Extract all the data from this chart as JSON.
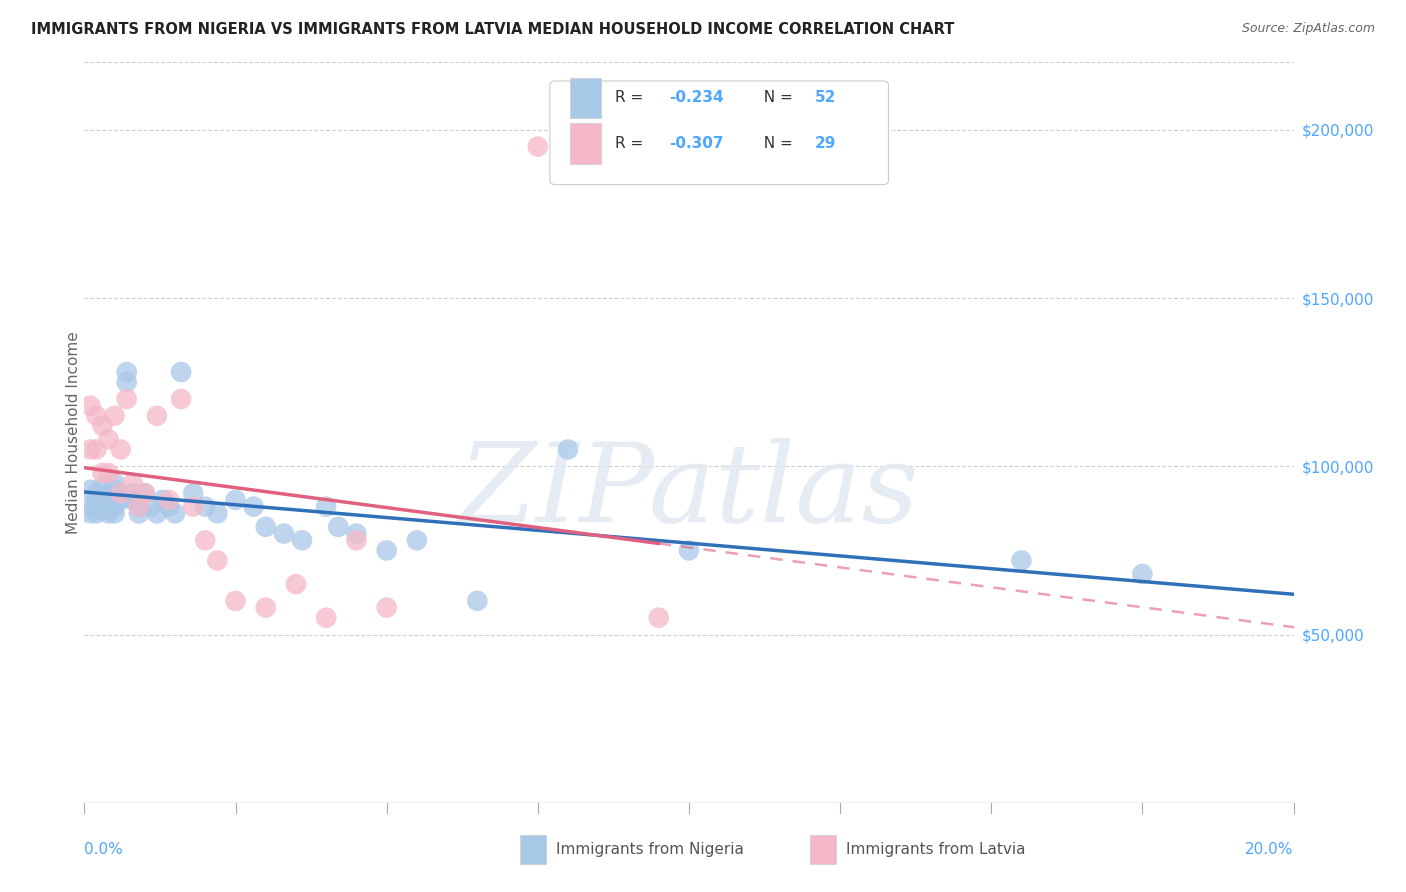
{
  "title": "IMMIGRANTS FROM NIGERIA VS IMMIGRANTS FROM LATVIA MEDIAN HOUSEHOLD INCOME CORRELATION CHART",
  "source": "Source: ZipAtlas.com",
  "ylabel": "Median Household Income",
  "nigeria_R": -0.234,
  "nigeria_N": 52,
  "latvia_R": -0.307,
  "latvia_N": 29,
  "nigeria_color": "#a8c8e8",
  "latvia_color": "#f4b8c8",
  "nigeria_line_color": "#3070b8",
  "latvia_line_color": "#e06080",
  "background_color": "#ffffff",
  "grid_color": "#d0d0d0",
  "ytick_color": "#4da6ff",
  "xtick_color": "#4da6ff",
  "legend_text_color": "#333333",
  "legend_value_color": "#4da6ff",
  "xlim": [
    0.0,
    0.2
  ],
  "ylim": [
    0,
    220000
  ],
  "nigeria_x": [
    0.001,
    0.001,
    0.001,
    0.002,
    0.002,
    0.002,
    0.002,
    0.003,
    0.003,
    0.003,
    0.003,
    0.004,
    0.004,
    0.004,
    0.004,
    0.005,
    0.005,
    0.005,
    0.005,
    0.006,
    0.006,
    0.007,
    0.007,
    0.008,
    0.008,
    0.009,
    0.009,
    0.01,
    0.011,
    0.012,
    0.013,
    0.014,
    0.015,
    0.016,
    0.018,
    0.02,
    0.022,
    0.025,
    0.028,
    0.03,
    0.033,
    0.036,
    0.04,
    0.042,
    0.045,
    0.05,
    0.055,
    0.065,
    0.08,
    0.1,
    0.155,
    0.175
  ],
  "nigeria_y": [
    88000,
    93000,
    86000,
    92000,
    90000,
    88000,
    86000,
    94000,
    90000,
    88000,
    87000,
    92000,
    88000,
    86000,
    90000,
    95000,
    93000,
    88000,
    86000,
    92000,
    90000,
    125000,
    128000,
    92000,
    90000,
    88000,
    86000,
    92000,
    88000,
    86000,
    90000,
    88000,
    86000,
    128000,
    92000,
    88000,
    86000,
    90000,
    88000,
    82000,
    80000,
    78000,
    88000,
    82000,
    80000,
    75000,
    78000,
    60000,
    105000,
    75000,
    72000,
    68000
  ],
  "latvia_x": [
    0.001,
    0.001,
    0.002,
    0.002,
    0.003,
    0.003,
    0.004,
    0.004,
    0.005,
    0.006,
    0.006,
    0.007,
    0.008,
    0.009,
    0.01,
    0.012,
    0.014,
    0.016,
    0.018,
    0.02,
    0.022,
    0.025,
    0.03,
    0.035,
    0.04,
    0.045,
    0.05,
    0.075,
    0.095
  ],
  "latvia_y": [
    118000,
    105000,
    115000,
    105000,
    112000,
    98000,
    108000,
    98000,
    115000,
    105000,
    92000,
    120000,
    95000,
    88000,
    92000,
    115000,
    90000,
    120000,
    88000,
    78000,
    72000,
    60000,
    58000,
    65000,
    55000,
    78000,
    58000,
    195000,
    55000
  ],
  "watermark": "ZIPatlas"
}
